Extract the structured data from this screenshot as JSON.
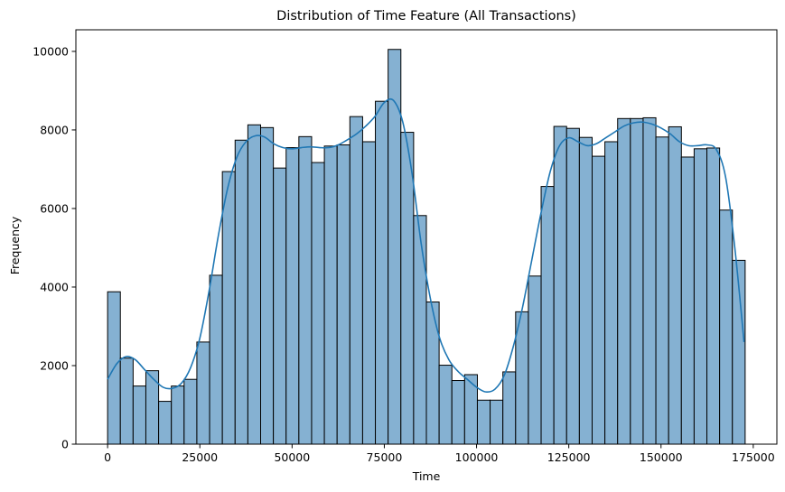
{
  "chart_data": {
    "type": "bar",
    "title": "Distribution of Time Feature (All Transactions)",
    "xlabel": "Time",
    "ylabel": "Frequency",
    "xlim": [
      -8600,
      181400
    ],
    "ylim": [
      0,
      10550
    ],
    "xticks": [
      0,
      25000,
      50000,
      75000,
      100000,
      125000,
      150000,
      175000
    ],
    "yticks": [
      0,
      2000,
      4000,
      6000,
      8000,
      10000
    ],
    "bin_width": 3456,
    "bin_start": 0,
    "bar_color": "#85b1d2",
    "kde_color": "#1f77b4",
    "values": [
      3880,
      2190,
      1480,
      1870,
      1090,
      1480,
      1650,
      2600,
      4300,
      6940,
      7740,
      8130,
      8060,
      7030,
      7550,
      7830,
      7170,
      7590,
      7620,
      8340,
      7700,
      8730,
      10050,
      7940,
      5820,
      3620,
      2010,
      1620,
      1770,
      1120,
      1120,
      1840,
      3370,
      4280,
      6560,
      8090,
      8040,
      7810,
      7330,
      7700,
      8290,
      8290,
      8310,
      7820,
      8080,
      7310,
      7520,
      7540,
      5960,
      4680
    ],
    "kde": {
      "x": [
        0,
        2500,
        5000,
        7500,
        10000,
        12500,
        15000,
        17500,
        20000,
        22500,
        25000,
        27500,
        30000,
        32500,
        35000,
        37500,
        40000,
        42500,
        45000,
        47500,
        50000,
        52500,
        55000,
        57500,
        60000,
        62500,
        65000,
        67500,
        70000,
        72500,
        75000,
        77500,
        80000,
        82500,
        85000,
        87500,
        90000,
        92500,
        95000,
        97500,
        100000,
        102500,
        105000,
        107500,
        110000,
        112500,
        115000,
        117500,
        120000,
        122500,
        125000,
        127500,
        130000,
        132500,
        135000,
        137500,
        140000,
        142500,
        145000,
        147500,
        150000,
        152500,
        155000,
        157500,
        160000,
        162500,
        165000,
        167500,
        170000,
        172500
      ],
      "y": [
        1650,
        2050,
        2230,
        2150,
        1900,
        1650,
        1450,
        1420,
        1550,
        1950,
        2700,
        3900,
        5300,
        6500,
        7300,
        7700,
        7850,
        7820,
        7650,
        7550,
        7520,
        7550,
        7570,
        7550,
        7550,
        7620,
        7750,
        7900,
        8100,
        8350,
        8700,
        8750,
        8200,
        6900,
        5100,
        3700,
        2700,
        2150,
        1850,
        1650,
        1450,
        1330,
        1400,
        1750,
        2500,
        3500,
        4700,
        5900,
        6950,
        7600,
        7800,
        7700,
        7600,
        7650,
        7800,
        7950,
        8100,
        8180,
        8200,
        8150,
        8050,
        7900,
        7700,
        7600,
        7600,
        7620,
        7500,
        6800,
        5000,
        2600
      ]
    }
  }
}
